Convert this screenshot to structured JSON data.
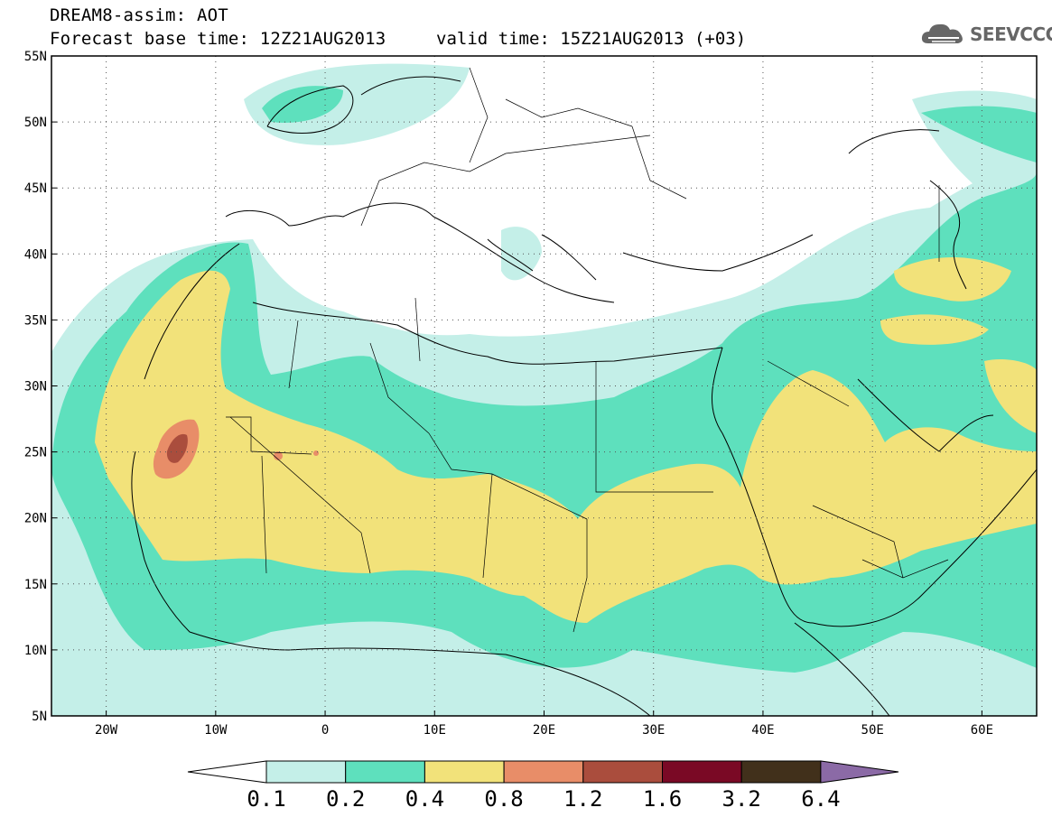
{
  "header": {
    "title": "DREAM8-assim: AOT",
    "base_time": "Forecast base time: 12Z21AUG2013",
    "valid_time": "valid time: 15Z21AUG2013 (+03)"
  },
  "logo": {
    "text": "SEEVCCC",
    "icon": "cloud-icon"
  },
  "map": {
    "lat_labels": [
      "55N",
      "50N",
      "45N",
      "40N",
      "35N",
      "30N",
      "25N",
      "20N",
      "15N",
      "10N",
      "5N"
    ],
    "lon_labels": [
      "20W",
      "10W",
      "0",
      "10E",
      "20E",
      "30E",
      "40E",
      "50E",
      "60E"
    ],
    "colors": {
      "c01": "#c4efe8",
      "c02": "#5ee0bd",
      "c04": "#f2e27a",
      "c08": "#e88d68",
      "c12": "#aa4d3d",
      "c16": "#7a0925",
      "c32": "#41301b",
      "c64": "#8b6aa6"
    }
  },
  "legend": {
    "labels": [
      "0.1",
      "0.2",
      "0.4",
      "0.8",
      "1.2",
      "1.6",
      "3.2",
      "6.4"
    ]
  }
}
